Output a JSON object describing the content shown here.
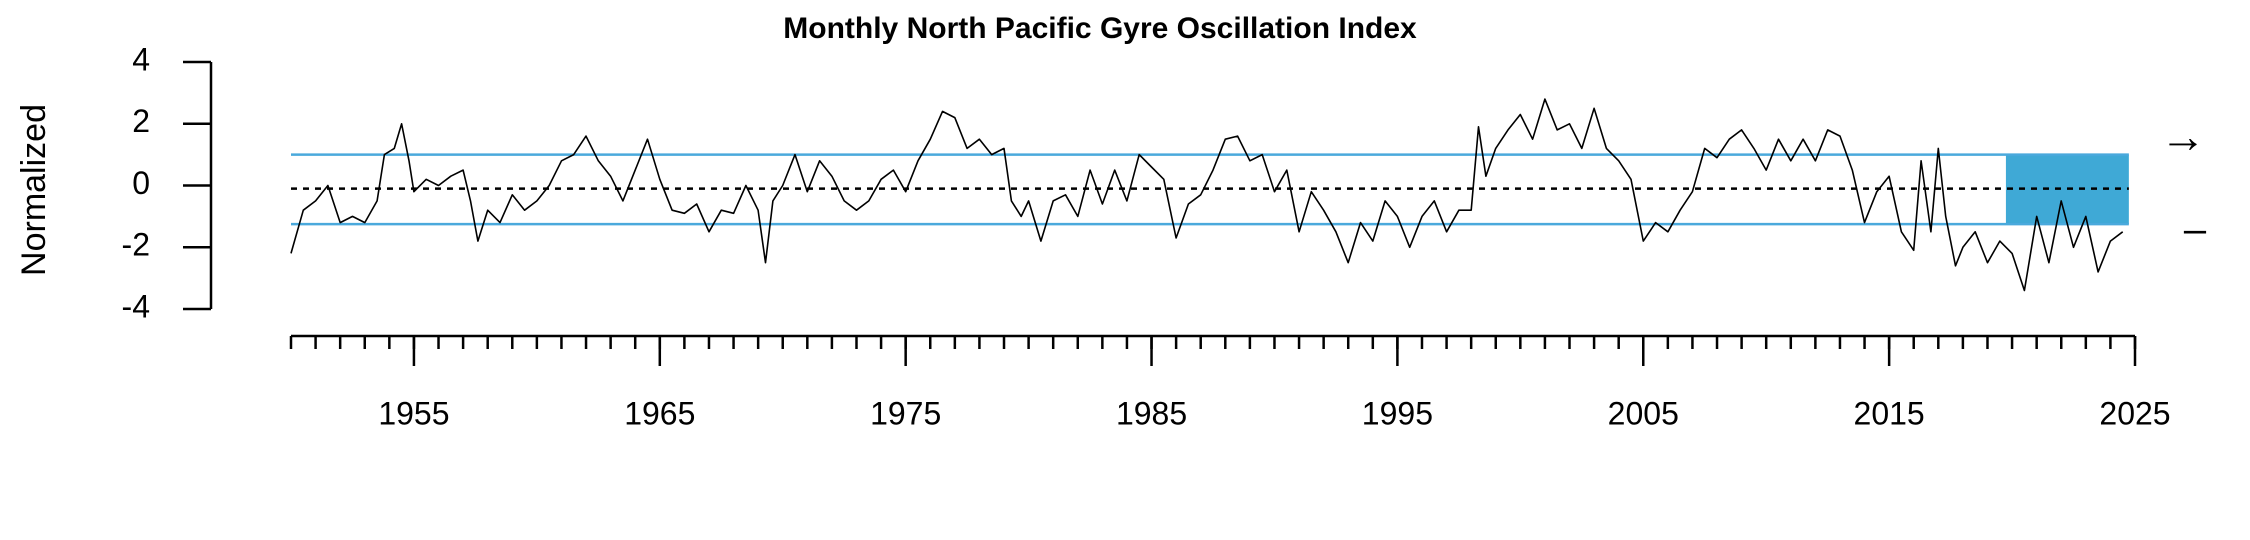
{
  "chart_data": {
    "type": "line",
    "title": "Monthly North Pacific Gyre Oscillation Index",
    "y_label": "Normalized",
    "color": "#000000",
    "xlim": [
      1950,
      2025
    ],
    "ylim": [
      -4,
      4
    ],
    "yticks": [
      -4,
      -2,
      0,
      2,
      4
    ],
    "xticks": [
      1955,
      1965,
      1975,
      1985,
      1995,
      2005,
      2015,
      2025
    ],
    "xminor_ticks": [
      1950,
      1951,
      1952,
      1953,
      1954,
      1955,
      1956,
      1957,
      1958,
      1959,
      1960,
      1961,
      1962,
      1963,
      1964,
      1965,
      1966,
      1967,
      1968,
      1969,
      1970,
      1971,
      1972,
      1973,
      1974,
      1975,
      1976,
      1977,
      1978,
      1979,
      1980,
      1981,
      1982,
      1983,
      1984,
      1985,
      1986,
      1987,
      1988,
      1989,
      1990,
      1991,
      1992,
      1993,
      1994,
      1995,
      1996,
      1997,
      1998,
      1999,
      2000,
      2001,
      2002,
      2003,
      2004,
      2005,
      2006,
      2007,
      2008,
      2009,
      2010,
      2011,
      2012,
      2013,
      2014,
      2015,
      2016,
      2017,
      2018,
      2019,
      2020,
      2021,
      2022,
      2023,
      2024,
      2025
    ],
    "reference_lines": [
      {
        "value": -0.1,
        "color": "#000000",
        "style": "dashed"
      },
      {
        "value": 1.0,
        "color": "#4aa9dc",
        "style": "solid"
      },
      {
        "value": -1.25,
        "color": "#4aa9dc",
        "style": "solid"
      }
    ],
    "shaded_x": [
      2019.75,
      2024.75
    ],
    "shaded_color": "#3fa9d6",
    "trend_symbol": "→",
    "mean_symbol": "–",
    "x": [
      1950,
      1950.5,
      1951,
      1951.5,
      1952,
      1952.5,
      1953,
      1953.5,
      1953.8,
      1954.2,
      1954.5,
      1954.8,
      1955,
      1955.5,
      1956,
      1956.5,
      1957,
      1957.3,
      1957.6,
      1958,
      1958.5,
      1959,
      1959.5,
      1960,
      1960.5,
      1961,
      1961.5,
      1962,
      1962.5,
      1963,
      1963.5,
      1964,
      1964.5,
      1965,
      1965.5,
      1966,
      1966.5,
      1967,
      1967.5,
      1968,
      1968.5,
      1969,
      1969.3,
      1969.6,
      1970,
      1970.5,
      1971,
      1971.5,
      1972,
      1972.5,
      1973,
      1973.5,
      1974,
      1974.5,
      1975,
      1975.5,
      1976,
      1976.5,
      1977,
      1977.5,
      1978,
      1978.5,
      1979,
      1979.3,
      1979.7,
      1980,
      1980.5,
      1981,
      1981.5,
      1982,
      1982.5,
      1983,
      1983.5,
      1984,
      1984.5,
      1985,
      1985.5,
      1986,
      1986.5,
      1987,
      1987.5,
      1988,
      1988.5,
      1989,
      1989.5,
      1990,
      1990.5,
      1991,
      1991.5,
      1992,
      1992.5,
      1993,
      1993.5,
      1994,
      1994.5,
      1995,
      1995.5,
      1996,
      1996.5,
      1997,
      1997.5,
      1998,
      1998.3,
      1998.6,
      1999,
      1999.5,
      2000,
      2000.5,
      2001,
      2001.5,
      2002,
      2002.5,
      2003,
      2003.5,
      2004,
      2004.5,
      2005,
      2005.5,
      2006,
      2006.5,
      2007,
      2007.5,
      2008,
      2008.5,
      2009,
      2009.5,
      2010,
      2010.5,
      2011,
      2011.5,
      2012,
      2012.5,
      2013,
      2013.5,
      2014,
      2014.5,
      2015,
      2015.5,
      2016,
      2016.3,
      2016.7,
      2017,
      2017.3,
      2017.7,
      2018,
      2018.5,
      2019,
      2019.5,
      2020,
      2020.5,
      2021,
      2021.5,
      2022,
      2022.5,
      2023,
      2023.5,
      2024,
      2024.5
    ],
    "values": [
      -2.2,
      -0.8,
      -0.5,
      0,
      -1.2,
      -1.0,
      -1.2,
      -0.5,
      1.0,
      1.2,
      2.0,
      0.8,
      -0.2,
      0.2,
      0,
      0.3,
      0.5,
      -0.5,
      -1.8,
      -0.8,
      -1.2,
      -0.3,
      -0.8,
      -0.5,
      0,
      0.8,
      1.0,
      1.6,
      0.8,
      0.3,
      -0.5,
      0.5,
      1.5,
      0.2,
      -0.8,
      -0.9,
      -0.6,
      -1.5,
      -0.8,
      -0.9,
      0,
      -0.8,
      -2.5,
      -0.5,
      0,
      1.0,
      -0.2,
      0.8,
      0.3,
      -0.5,
      -0.8,
      -0.5,
      0.2,
      0.5,
      -0.2,
      0.8,
      1.5,
      2.4,
      2.2,
      1.2,
      1.5,
      1.0,
      1.2,
      -0.5,
      -1.0,
      -0.5,
      -1.8,
      -0.5,
      -0.3,
      -1.0,
      0.5,
      -0.6,
      0.5,
      -0.5,
      1.0,
      0.6,
      0.2,
      -1.7,
      -0.6,
      -0.3,
      0.5,
      1.5,
      1.6,
      0.8,
      1.0,
      -0.2,
      0.5,
      -1.5,
      -0.2,
      -0.8,
      -1.5,
      -2.5,
      -1.2,
      -1.8,
      -0.5,
      -1.0,
      -2.0,
      -1.0,
      -0.5,
      -1.5,
      -0.8,
      -0.8,
      1.9,
      0.3,
      1.2,
      1.8,
      2.3,
      1.5,
      2.8,
      1.8,
      2.0,
      1.2,
      2.5,
      1.2,
      0.8,
      0.2,
      -1.8,
      -1.2,
      -1.5,
      -0.8,
      -0.2,
      1.2,
      0.9,
      1.5,
      1.8,
      1.2,
      0.5,
      1.5,
      0.8,
      1.5,
      0.8,
      1.8,
      1.6,
      0.5,
      -1.2,
      -0.2,
      0.3,
      -1.5,
      -2.1,
      0.8,
      -1.5,
      1.2,
      -1.0,
      -2.6,
      -2.0,
      -1.5,
      -2.5,
      -1.8,
      -2.2,
      -3.4,
      -1.0,
      -2.5,
      -0.5,
      -2.0,
      -1.0,
      -2.8,
      -1.8,
      -1.5
    ]
  }
}
